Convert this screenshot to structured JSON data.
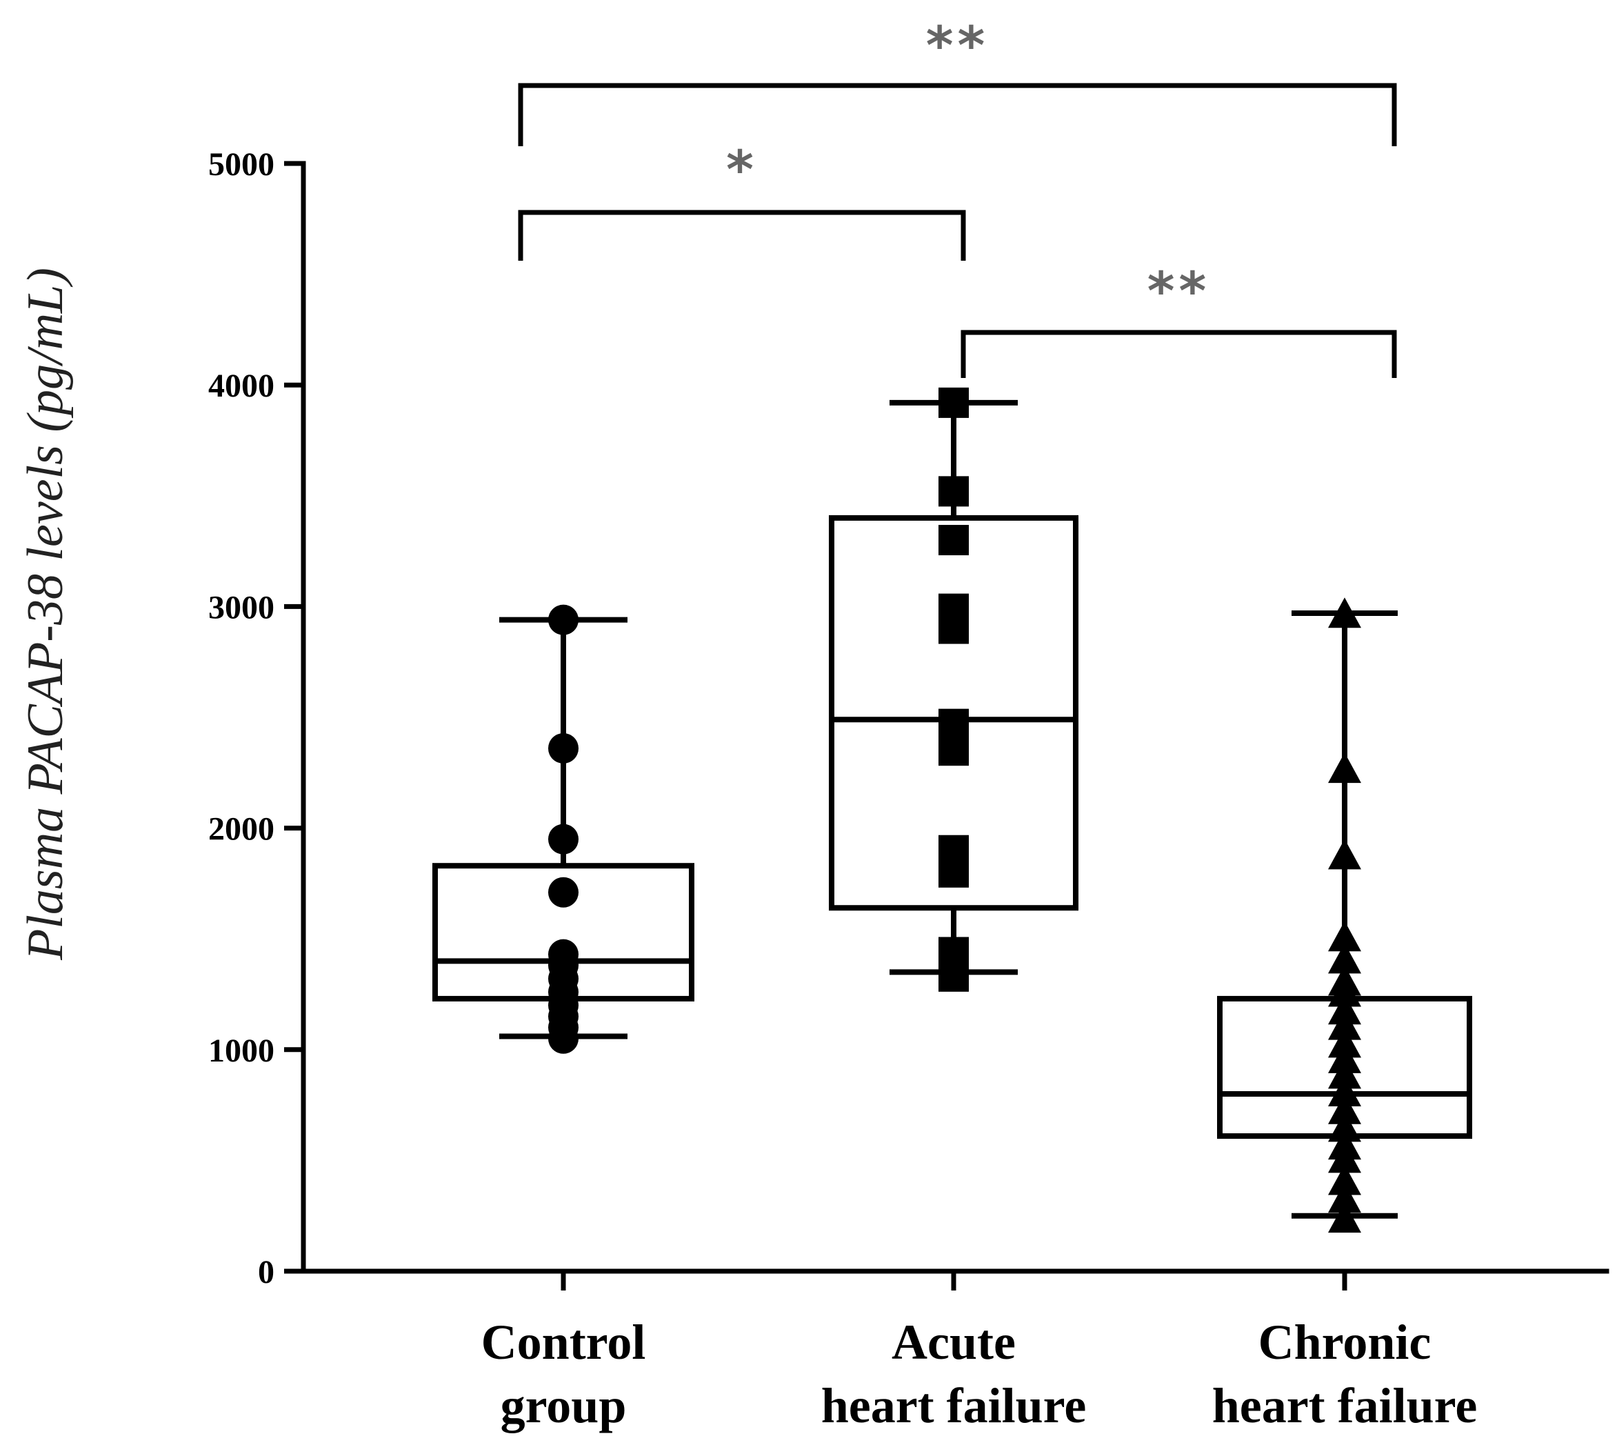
{
  "chart_data": {
    "type": "box",
    "title": "",
    "xlabel": "",
    "ylabel": "Plasma PACAP-38 levels (pg/mL)",
    "ylim": [
      0,
      5000
    ],
    "yticks": [
      0,
      1000,
      2000,
      3000,
      4000,
      5000
    ],
    "grid": false,
    "groups": [
      {
        "name": "Control group",
        "label_lines": [
          "Control",
          "group"
        ],
        "marker": "circle",
        "min": 1060,
        "q1": 1230,
        "median": 1400,
        "q3": 1830,
        "max": 2940,
        "points": [
          1050,
          1100,
          1150,
          1200,
          1260,
          1320,
          1380,
          1430,
          1710,
          1950,
          2360,
          2940
        ]
      },
      {
        "name": "Acute heart failure",
        "label_lines": [
          "Acute",
          "heart failure"
        ],
        "marker": "square",
        "min": 1350,
        "q1": 1640,
        "median": 2490,
        "q3": 3400,
        "max": 3920,
        "points": [
          1330,
          1440,
          1800,
          1900,
          2350,
          2470,
          2900,
          2990,
          3300,
          3520,
          3920
        ]
      },
      {
        "name": "Chronic heart failure",
        "label_lines": [
          "Chronic",
          "heart failure"
        ],
        "marker": "triangle",
        "min": 250,
        "q1": 610,
        "median": 800,
        "q3": 1230,
        "max": 2970,
        "points": [
          230,
          320,
          400,
          500,
          560,
          640,
          720,
          800,
          880,
          950,
          1020,
          1100,
          1170,
          1250,
          1300,
          1400,
          1500,
          1870,
          2260,
          2960
        ]
      }
    ],
    "comparisons": [
      {
        "from": 0,
        "to": 1,
        "label": "*"
      },
      {
        "from": 0,
        "to": 2,
        "label": "**"
      },
      {
        "from": 1,
        "to": 2,
        "label": "**"
      }
    ]
  }
}
